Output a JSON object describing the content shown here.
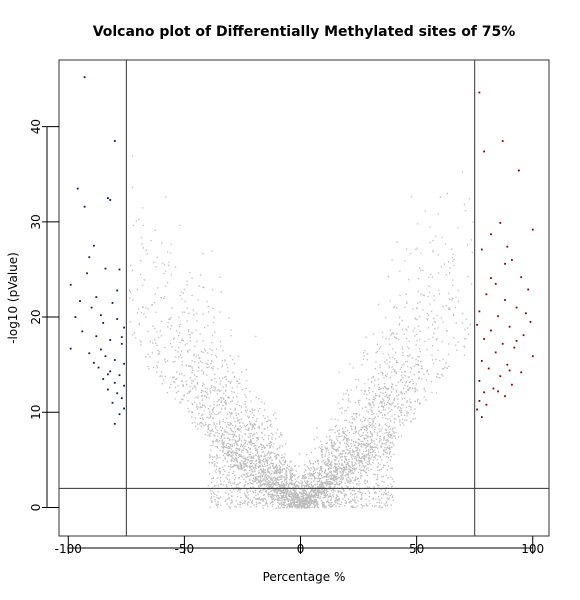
{
  "chart_data": {
    "type": "scatter",
    "title": "Volcano plot of Differentially Methylated sites of 75%",
    "xlabel": "Percentage %",
    "ylabel": "-log10 (pValue)",
    "xlim": [
      -104,
      107
    ],
    "ylim": [
      -3,
      47
    ],
    "x_ticks": [
      -100,
      -50,
      0,
      50,
      100
    ],
    "y_ticks": [
      0,
      10,
      20,
      30,
      40
    ],
    "thresholds": {
      "percentage": [
        -75,
        75
      ],
      "neg_log10_p": 2
    },
    "colors": {
      "non_significant": "#bebebe",
      "hypomethylated": "#0b1f4f",
      "hypermethylated": "#8b0000",
      "lines": "#333333"
    },
    "series": [
      {
        "group": "hypomethylated",
        "points": [
          [
            -93,
            45.2
          ],
          [
            -80,
            38.5
          ],
          [
            -96,
            33.5
          ],
          [
            -83,
            32.5
          ],
          [
            -82,
            32.3
          ],
          [
            -93,
            31.6
          ],
          [
            -89,
            27.5
          ],
          [
            -99,
            23.4
          ],
          [
            -92,
            24.6
          ],
          [
            -84,
            25.1
          ],
          [
            -78,
            25.0
          ],
          [
            -88,
            22.1
          ],
          [
            -95,
            21.7
          ],
          [
            -90,
            21.0
          ],
          [
            -86,
            20.2
          ],
          [
            -81,
            21.5
          ],
          [
            -97,
            20.0
          ],
          [
            -85,
            19.4
          ],
          [
            -79,
            19.8
          ],
          [
            -76,
            18.9
          ],
          [
            -94,
            18.5
          ],
          [
            -88,
            18.0
          ],
          [
            -82,
            17.6
          ],
          [
            -77,
            17.2
          ],
          [
            -99,
            16.7
          ],
          [
            -91,
            16.2
          ],
          [
            -84,
            15.9
          ],
          [
            -80,
            15.5
          ],
          [
            -76,
            15.1
          ],
          [
            -87,
            14.7
          ],
          [
            -82,
            14.3
          ],
          [
            -78,
            13.9
          ],
          [
            -85,
            13.5
          ],
          [
            -80,
            13.1
          ],
          [
            -76,
            12.8
          ],
          [
            -83,
            12.4
          ],
          [
            -79,
            12.0
          ],
          [
            -77,
            11.5
          ],
          [
            -81,
            11.0
          ],
          [
            -76,
            10.4
          ],
          [
            -78,
            9.8
          ],
          [
            -80,
            8.8
          ],
          [
            -77,
            17.9
          ],
          [
            -86,
            16.6
          ],
          [
            -89,
            15.2
          ],
          [
            -83,
            14.0
          ],
          [
            -79,
            22.8
          ],
          [
            -91,
            26.3
          ]
        ]
      },
      {
        "group": "hypermethylated",
        "points": [
          [
            77,
            43.6
          ],
          [
            87,
            38.5
          ],
          [
            79,
            37.4
          ],
          [
            94,
            35.4
          ],
          [
            86,
            29.9
          ],
          [
            100,
            29.2
          ],
          [
            82,
            28.7
          ],
          [
            89,
            27.4
          ],
          [
            78,
            27.1
          ],
          [
            91,
            26.0
          ],
          [
            95,
            24.2
          ],
          [
            84,
            23.5
          ],
          [
            98,
            22.9
          ],
          [
            80,
            22.4
          ],
          [
            88,
            21.8
          ],
          [
            93,
            21.0
          ],
          [
            77,
            20.6
          ],
          [
            85,
            20.1
          ],
          [
            99,
            19.5
          ],
          [
            90,
            19.0
          ],
          [
            82,
            18.6
          ],
          [
            96,
            18.1
          ],
          [
            79,
            17.7
          ],
          [
            87,
            17.2
          ],
          [
            92,
            16.8
          ],
          [
            84,
            16.3
          ],
          [
            100,
            15.9
          ],
          [
            78,
            15.4
          ],
          [
            89,
            15.0
          ],
          [
            81,
            14.6
          ],
          [
            95,
            14.2
          ],
          [
            86,
            13.8
          ],
          [
            77,
            13.3
          ],
          [
            91,
            12.9
          ],
          [
            83,
            12.5
          ],
          [
            79,
            12.1
          ],
          [
            88,
            11.7
          ],
          [
            77,
            11.2
          ],
          [
            80,
            10.8
          ],
          [
            76,
            10.3
          ],
          [
            78,
            9.5
          ],
          [
            85,
            12.2
          ],
          [
            93,
            17.5
          ],
          [
            97,
            20.4
          ],
          [
            82,
            24.1
          ],
          [
            88,
            25.6
          ],
          [
            76,
            19.2
          ],
          [
            90,
            14.4
          ]
        ]
      }
    ]
  }
}
